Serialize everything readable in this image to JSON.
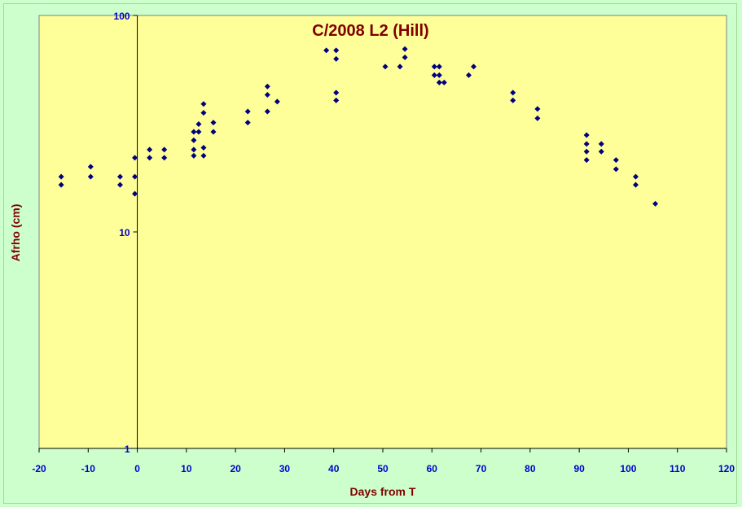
{
  "chart_data": {
    "type": "scatter",
    "title": "C/2008 L2 (Hill)",
    "xlabel": "Days from T",
    "ylabel": "Afrho (cm)",
    "xlim": [
      -20,
      120
    ],
    "ylim": [
      1,
      100
    ],
    "yscale": "log",
    "x_ticks": [
      -20,
      -10,
      0,
      10,
      20,
      30,
      40,
      50,
      60,
      70,
      80,
      90,
      100,
      110,
      120
    ],
    "y_ticks": [
      1,
      10,
      100
    ],
    "grid": false,
    "legend": "none",
    "series": [
      {
        "marker": "diamond",
        "points": [
          [
            -15.5,
            18
          ],
          [
            -15.5,
            16.5
          ],
          [
            -9.5,
            20
          ],
          [
            -9.5,
            18
          ],
          [
            -3.5,
            18
          ],
          [
            -3.5,
            16.5
          ],
          [
            -0.5,
            22
          ],
          [
            -0.5,
            18
          ],
          [
            -0.5,
            15
          ],
          [
            2.5,
            24
          ],
          [
            2.5,
            22
          ],
          [
            5.5,
            24
          ],
          [
            5.5,
            22
          ],
          [
            11.5,
            29
          ],
          [
            11.5,
            26.5
          ],
          [
            11.5,
            24
          ],
          [
            11.5,
            22.5
          ],
          [
            12.5,
            31.5
          ],
          [
            12.5,
            29
          ],
          [
            13.5,
            39
          ],
          [
            13.5,
            35.5
          ],
          [
            13.5,
            24.5
          ],
          [
            13.5,
            22.5
          ],
          [
            15.5,
            32
          ],
          [
            15.5,
            29
          ],
          [
            22.5,
            36
          ],
          [
            22.5,
            32
          ],
          [
            26.5,
            47
          ],
          [
            26.5,
            43
          ],
          [
            26.5,
            36
          ],
          [
            28.5,
            40
          ],
          [
            38.5,
            69
          ],
          [
            40.5,
            69
          ],
          [
            40.5,
            63
          ],
          [
            40.5,
            44
          ],
          [
            40.5,
            40.5
          ],
          [
            50.5,
            58
          ],
          [
            53.5,
            58
          ],
          [
            54.5,
            70
          ],
          [
            54.5,
            64
          ],
          [
            60.5,
            58
          ],
          [
            60.5,
            53
          ],
          [
            61.5,
            58
          ],
          [
            61.5,
            53
          ],
          [
            61.5,
            49
          ],
          [
            62.5,
            49
          ],
          [
            67.5,
            53
          ],
          [
            68.5,
            58
          ],
          [
            76.5,
            44
          ],
          [
            76.5,
            40.5
          ],
          [
            81.5,
            37
          ],
          [
            81.5,
            33.5
          ],
          [
            91.5,
            28
          ],
          [
            91.5,
            25.5
          ],
          [
            91.5,
            23.5
          ],
          [
            91.5,
            21.5
          ],
          [
            94.5,
            25.5
          ],
          [
            94.5,
            23.5
          ],
          [
            97.5,
            21.5
          ],
          [
            97.5,
            19.5
          ],
          [
            101.5,
            18
          ],
          [
            101.5,
            16.5
          ],
          [
            105.5,
            13.5
          ]
        ]
      }
    ],
    "colors": {
      "background": "#ccffcc",
      "plot_area": "#ffff99",
      "marker": "#000080",
      "tick_labels": "#0000cc",
      "titles": "#800000"
    }
  }
}
